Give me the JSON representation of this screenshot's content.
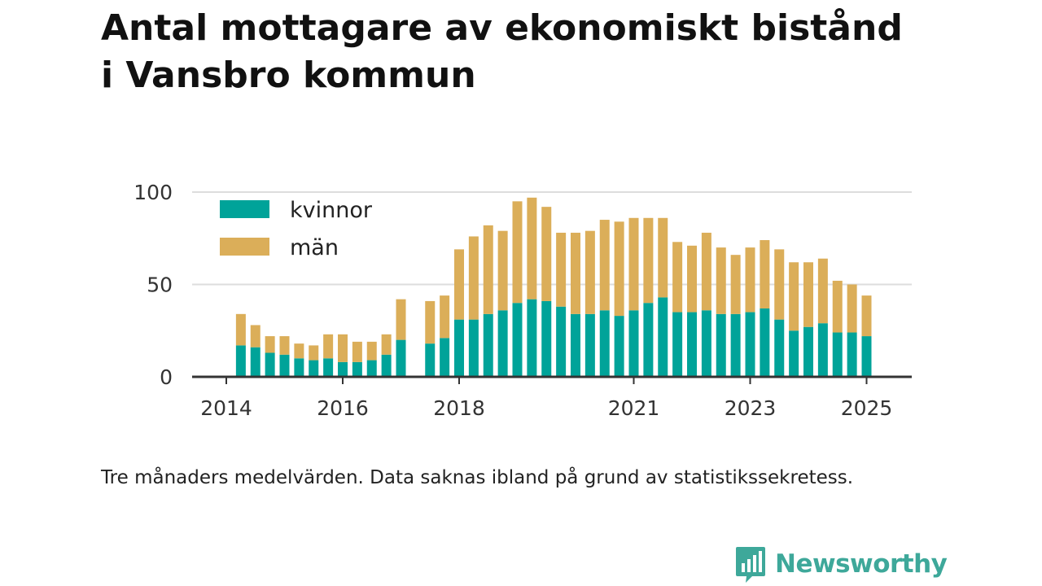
{
  "title_lines": [
    "Antal mottagare av ekonomiskt bistånd",
    "i Vansbro kommun"
  ],
  "note": "Tre månaders medelvärden. Data saknas ibland på grund av statistikssekretess.",
  "brand": {
    "name": "Newsworthy",
    "color": "#3ea89a",
    "icon": "newsworthy-logo-icon"
  },
  "colors": {
    "kvinnor": "#00a399",
    "man": "#dbae59",
    "grid": "#dddddd",
    "axis": "#333333"
  },
  "chart_data": {
    "type": "bar",
    "stacked": true,
    "ylim": [
      0,
      100
    ],
    "yticks": [
      0,
      50,
      100
    ],
    "xticks": [
      {
        "label": "2014",
        "x": 2014.0
      },
      {
        "label": "2016",
        "x": 2016.0
      },
      {
        "label": "2018",
        "x": 2018.0
      },
      {
        "label": "2021",
        "x": 2021.0
      },
      {
        "label": "2023",
        "x": 2023.0
      },
      {
        "label": "2025",
        "x": 2025.0
      }
    ],
    "legend_position": "top-left",
    "grid": true,
    "x": [
      2014.25,
      2014.5,
      2014.75,
      2015.0,
      2015.25,
      2015.5,
      2015.75,
      2016.0,
      2016.25,
      2016.5,
      2016.75,
      2017.0,
      2017.5,
      2017.75,
      2018.0,
      2018.25,
      2018.5,
      2018.75,
      2019.0,
      2019.25,
      2019.5,
      2019.75,
      2020.0,
      2020.25,
      2020.5,
      2020.75,
      2021.0,
      2021.25,
      2021.5,
      2021.75,
      2022.0,
      2022.25,
      2022.5,
      2022.75,
      2023.0,
      2023.25,
      2023.5,
      2023.75,
      2024.0,
      2024.25,
      2024.5,
      2024.75,
      2025.0,
      2025.25,
      2025.5
    ],
    "series": [
      {
        "name": "kvinnor",
        "values": [
          17,
          16,
          13,
          12,
          10,
          9,
          10,
          8,
          8,
          9,
          12,
          20,
          18,
          21,
          31,
          31,
          34,
          36,
          40,
          42,
          41,
          38,
          34,
          34,
          36,
          33,
          36,
          40,
          43,
          35,
          35,
          36,
          34,
          34,
          35,
          37,
          31,
          25,
          27,
          29,
          24,
          24,
          22,
          0,
          0
        ]
      },
      {
        "name": "män",
        "values": [
          17,
          12,
          9,
          10,
          8,
          8,
          13,
          15,
          11,
          10,
          11,
          22,
          23,
          23,
          38,
          45,
          48,
          43,
          55,
          55,
          51,
          40,
          44,
          45,
          49,
          51,
          50,
          46,
          43,
          38,
          36,
          42,
          36,
          32,
          35,
          37,
          38,
          37,
          35,
          35,
          28,
          26,
          22,
          0,
          0
        ]
      }
    ]
  }
}
